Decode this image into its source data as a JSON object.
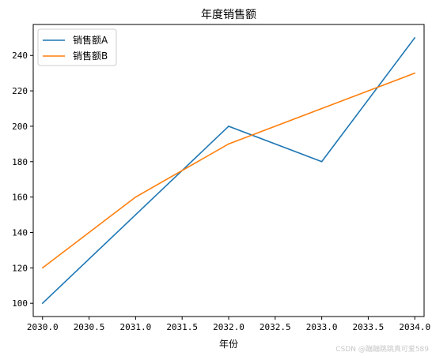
{
  "chart_data": {
    "type": "line",
    "title": "年度销售额",
    "xlabel": "年份",
    "ylabel": "",
    "x": [
      2030,
      2031,
      2032,
      2033,
      2034
    ],
    "series": [
      {
        "name": "销售额A",
        "values": [
          100,
          150,
          200,
          180,
          250
        ],
        "color": "#1f77b4"
      },
      {
        "name": "销售额B",
        "values": [
          120,
          160,
          190,
          210,
          230
        ],
        "color": "#ff7f0e"
      }
    ],
    "xlim": [
      2029.9,
      2034.1
    ],
    "ylim": [
      92.5,
      257.5
    ],
    "xticks": [
      2030.0,
      2030.5,
      2031.0,
      2031.5,
      2032.0,
      2032.5,
      2033.0,
      2033.5,
      2034.0
    ],
    "xtick_labels": [
      "2030.0",
      "2030.5",
      "2031.0",
      "2031.5",
      "2032.0",
      "2032.5",
      "2033.0",
      "2033.5",
      "2034.0"
    ],
    "yticks": [
      100,
      120,
      140,
      160,
      180,
      200,
      220,
      240
    ],
    "ytick_labels": [
      "100",
      "120",
      "140",
      "160",
      "180",
      "200",
      "220",
      "240"
    ],
    "grid": false,
    "legend": "upper left"
  },
  "watermark": "CSDN @蹦蹦跳跳真可爱589"
}
